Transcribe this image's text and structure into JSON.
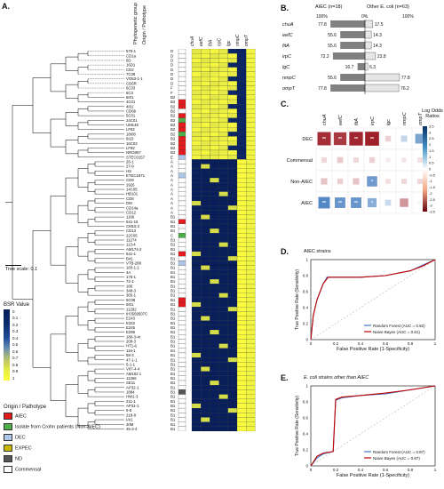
{
  "panelA": {
    "letter": "A.",
    "tree_scale_label": "Tree scale: 0.1",
    "header_phylo": "Phylogenetic group",
    "header_origin": "Origin / Pathotype",
    "genes": [
      "chuA",
      "eefC",
      "fitA",
      "irpC",
      "lgc",
      "nmpC",
      "ompT"
    ],
    "strains": [
      {
        "name": "576-1",
        "group": "D",
        "origin": "C"
      },
      {
        "name": "CD1a",
        "group": "D",
        "origin": "C"
      },
      {
        "name": "6D",
        "group": "D",
        "origin": "C"
      },
      {
        "name": "16D1",
        "group": "D",
        "origin": "C"
      },
      {
        "name": "CD2",
        "group": "D",
        "origin": "C"
      },
      {
        "name": "7C08",
        "group": "D",
        "origin": "C"
      },
      {
        "name": "VO53-1-1",
        "group": "D",
        "origin": "C"
      },
      {
        "name": "CD6R",
        "group": "D",
        "origin": "C"
      },
      {
        "name": "6C03",
        "group": "F",
        "origin": "C"
      },
      {
        "name": "6C3",
        "group": "F",
        "origin": "C"
      },
      {
        "name": "6I01",
        "group": "B2",
        "origin": "C"
      },
      {
        "name": "4C01",
        "group": "B2",
        "origin": "AIEC"
      },
      {
        "name": "4I01",
        "group": "B2",
        "origin": "AIEC"
      },
      {
        "name": "CD6b",
        "group": "B2",
        "origin": "C"
      },
      {
        "name": "5C01",
        "group": "B2",
        "origin": "AIEC"
      },
      {
        "name": "24C01",
        "group": "B2",
        "origin": "NonAIEC"
      },
      {
        "name": "UM146",
        "group": "B2",
        "origin": "AIEC"
      },
      {
        "name": "LF82",
        "group": "B2",
        "origin": "AIEC"
      },
      {
        "name": "18I08",
        "group": "B2",
        "origin": "NonAIEC"
      },
      {
        "name": "6I10",
        "group": "B2",
        "origin": "AIEC"
      },
      {
        "name": "16C02",
        "group": "B2",
        "origin": "AIEC"
      },
      {
        "name": "LF82",
        "group": "B2",
        "origin": "AIEC"
      },
      {
        "name": "NRG857",
        "group": "B2",
        "origin": "AIEC"
      },
      {
        "name": "STEC0157",
        "group": "E",
        "origin": "DEC"
      },
      {
        "name": "26-1",
        "group": "A",
        "origin": "C"
      },
      {
        "name": "27-9",
        "group": "A",
        "origin": "C"
      },
      {
        "name": "HS",
        "group": "A",
        "origin": "C"
      },
      {
        "name": "ETEC1871",
        "group": "A",
        "origin": "DEC"
      },
      {
        "name": "CD9",
        "group": "A",
        "origin": "C"
      },
      {
        "name": "1926",
        "group": "A",
        "origin": "C"
      },
      {
        "name": "14C05",
        "group": "A",
        "origin": "C"
      },
      {
        "name": "HB101",
        "group": "A",
        "origin": "C"
      },
      {
        "name": "CD8",
        "group": "A",
        "origin": "C"
      },
      {
        "name": "DM",
        "group": "A",
        "origin": "C"
      },
      {
        "name": "CD14a",
        "group": "A",
        "origin": "C"
      },
      {
        "name": "CD12",
        "group": "A",
        "origin": "C"
      },
      {
        "name": "1166",
        "group": "B1",
        "origin": "C"
      },
      {
        "name": "541-15",
        "group": "B1",
        "origin": "AIEC"
      },
      {
        "name": "CM15 2",
        "group": "B1",
        "origin": "C"
      },
      {
        "name": "CD13",
        "group": "B1",
        "origin": "C"
      },
      {
        "name": "22C05",
        "group": "C",
        "origin": "NonAIEC"
      },
      {
        "name": "11274",
        "group": "B1",
        "origin": "C"
      },
      {
        "name": "113-4",
        "group": "B1",
        "origin": "C"
      },
      {
        "name": "AM174-2",
        "group": "B1",
        "origin": "C"
      },
      {
        "name": "541-1",
        "group": "B1",
        "origin": "AIEC"
      },
      {
        "name": "B41",
        "group": "B1",
        "origin": "C"
      },
      {
        "name": "VTB-288",
        "group": "B1",
        "origin": "DEC"
      },
      {
        "name": "183-1-1",
        "group": "B1",
        "origin": "C"
      },
      {
        "name": "4A",
        "group": "B1",
        "origin": "C"
      },
      {
        "name": "175-1",
        "group": "B1",
        "origin": "C"
      },
      {
        "name": "72-1",
        "group": "B1",
        "origin": "C"
      },
      {
        "name": "186",
        "group": "B1",
        "origin": "C"
      },
      {
        "name": "348-3",
        "group": "B1",
        "origin": "C"
      },
      {
        "name": "365-1",
        "group": "B1",
        "origin": "C"
      },
      {
        "name": "5C08",
        "group": "B1",
        "origin": "AIEC"
      },
      {
        "name": "5I01",
        "group": "B1",
        "origin": "AIEC"
      },
      {
        "name": "11292",
        "group": "B1",
        "origin": "C"
      },
      {
        "name": "IH3569507C",
        "group": "B1",
        "origin": "C"
      },
      {
        "name": "E243",
        "group": "B1",
        "origin": "C"
      },
      {
        "name": "E342",
        "group": "B1",
        "origin": "C"
      },
      {
        "name": "E245",
        "group": "B1",
        "origin": "C"
      },
      {
        "name": "E296",
        "group": "B1",
        "origin": "C"
      },
      {
        "name": "180-3-4r",
        "group": "B1",
        "origin": "C"
      },
      {
        "name": "208-3",
        "group": "B1",
        "origin": "C"
      },
      {
        "name": "HT1-6",
        "group": "B1",
        "origin": "C"
      },
      {
        "name": "116-1",
        "group": "B1",
        "origin": "C"
      },
      {
        "name": "58-3",
        "group": "B1",
        "origin": "C"
      },
      {
        "name": "47-1-1",
        "group": "B1",
        "origin": "C"
      },
      {
        "name": "5-1-1",
        "group": "B1",
        "origin": "C"
      },
      {
        "name": "V07-4-4",
        "group": "B1",
        "origin": "C"
      },
      {
        "name": "AM162 1",
        "group": "B1",
        "origin": "C"
      },
      {
        "name": "11266",
        "group": "B1",
        "origin": "C"
      },
      {
        "name": "SE11",
        "group": "B1",
        "origin": "C"
      },
      {
        "name": "AP32-1",
        "group": "B1",
        "origin": "C"
      },
      {
        "name": "1884",
        "group": "B1",
        "origin": "ND"
      },
      {
        "name": "HW1-3",
        "group": "B1",
        "origin": "C"
      },
      {
        "name": "211-1",
        "group": "B1",
        "origin": "C"
      },
      {
        "name": "AP31-1",
        "group": "B1",
        "origin": "C"
      },
      {
        "name": "6-8",
        "group": "B1",
        "origin": "C"
      },
      {
        "name": "218-8",
        "group": "B1",
        "origin": "C"
      },
      {
        "name": "IAI1",
        "group": "B1",
        "origin": "C"
      },
      {
        "name": "30M",
        "group": "B1",
        "origin": "C"
      },
      {
        "name": "45-2-4",
        "group": "B1",
        "origin": "C"
      }
    ],
    "bsr_legend": {
      "title": "BSR Value",
      "ticks": [
        "0",
        "0.1",
        "0.2",
        "0.3",
        "0.4",
        "0.5",
        "0.6",
        "0.7",
        "0.8",
        "0.9",
        "1"
      ]
    },
    "origin_legend": {
      "title": "Origin / Pathotype",
      "items": [
        {
          "label": "AIEC",
          "color": "#e41a1c"
        },
        {
          "label": "Isolate from Crohn patients (Non-AIEC)",
          "color": "#4daf4a"
        },
        {
          "label": "DEC",
          "color": "#aec7e8"
        },
        {
          "label": "EXPEC",
          "color": "#c9b800"
        },
        {
          "label": "ND",
          "color": "#555555"
        },
        {
          "label": "Commensal",
          "color": "#ffffff"
        }
      ]
    }
  },
  "panelB": {
    "letter": "B.",
    "left_title": "AIEC (n=18)",
    "right_title": "Other E. coli (n=63)",
    "axis_labels": [
      "100%",
      "0%",
      "100%"
    ],
    "rows": [
      {
        "gene": "chuA",
        "aiec": 77.8,
        "other": 17.5
      },
      {
        "gene": "eefC",
        "aiec": 55.6,
        "other": 14.3
      },
      {
        "gene": "fitA",
        "aiec": 55.6,
        "other": 14.3
      },
      {
        "gene": "irpC",
        "aiec": 72.2,
        "other": 23.8
      },
      {
        "gene": "lgC",
        "aiec": 16.7,
        "other": 6.3
      },
      {
        "gene": "nmpC",
        "aiec": 55.6,
        "other": 77.8
      },
      {
        "gene": "ompT",
        "aiec": 77.8,
        "other": 76.2
      }
    ]
  },
  "panelC": {
    "letter": "C.",
    "genes": [
      "chuA",
      "eefC",
      "fitA",
      "irpC",
      "lgc",
      "nmpC",
      "ompT"
    ],
    "rows": [
      "DEC",
      "Commensal",
      "Non-AIEC",
      "AIEC"
    ],
    "legend_title": "Log Odds Ratios",
    "legend_ticks": [
      "3.5",
      "3",
      "2.5",
      "2",
      "1.5",
      "1",
      "0.5",
      "0",
      "-0.5",
      "-1",
      "-1.5",
      "-2",
      "-2.5",
      "-3",
      "-3.5"
    ],
    "values": [
      [
        -3.2,
        -3.0,
        -3.3,
        -3.4,
        -0.7,
        0.9,
        2.0
      ],
      [
        -0.6,
        -0.8,
        -0.6,
        -0.7,
        -0.3,
        -0.4,
        -0.5
      ],
      [
        -0.9,
        -0.7,
        -0.9,
        2.2,
        -0.5,
        -0.6,
        -0.6
      ],
      [
        2.6,
        2.3,
        2.3,
        1.8,
        0.8,
        -1.6,
        0.2
      ]
    ],
    "stars": [
      [
        "**",
        "**",
        "**",
        "**",
        "",
        "",
        ""
      ],
      [
        "",
        "",
        "",
        "",
        "",
        "",
        ""
      ],
      [
        "",
        "",
        "",
        "*",
        "",
        "",
        ""
      ],
      [
        "**",
        "**",
        "**",
        "*",
        "",
        "",
        ""
      ]
    ]
  },
  "panelD": {
    "letter": "D.",
    "title": "AIEC strains",
    "xlabel": "False Positive Rate (1-Specificity)",
    "ylabel": "True Positive Rate (Sensitivity)",
    "ticks": [
      "0",
      "0.2",
      "0.4",
      "0.6",
      "0.8",
      "1"
    ],
    "legend": [
      {
        "label": "Random Forest (AUC = 0.82)",
        "color": "#4472c4"
      },
      {
        "label": "Naive Bayes (AUC = 0.81)",
        "color": "#c00000"
      }
    ]
  },
  "panelE": {
    "letter": "E.",
    "title": "E. coli strains other than AIEC",
    "xlabel": "False Positive Rate (1-Specificity)",
    "ylabel": "True Positive Rate (Sensitivity)",
    "ticks": [
      "0",
      "0.2",
      "0.4",
      "0.6",
      "0.8",
      "1"
    ],
    "legend": [
      {
        "label": "Random Forest (AUC = 0.87)",
        "color": "#4472c4"
      },
      {
        "label": "Naive Bayes (AUC = 0.87)",
        "color": "#c00000"
      }
    ]
  },
  "chart_data": [
    {
      "type": "bar",
      "categories": [
        "chuA",
        "eefC",
        "fitA",
        "irpC",
        "lgC",
        "nmpC",
        "ompT"
      ],
      "series": [
        {
          "name": "AIEC (n=18)",
          "values": [
            77.8,
            55.6,
            55.6,
            72.2,
            16.7,
            55.6,
            77.8
          ]
        },
        {
          "name": "Other E. coli (n=63)",
          "values": [
            17.5,
            14.3,
            14.3,
            23.8,
            6.3,
            77.8,
            76.2
          ]
        }
      ]
    },
    {
      "type": "heatmap",
      "x": [
        "chuA",
        "eefC",
        "fitA",
        "irpC",
        "lgc",
        "nmpC",
        "ompT"
      ],
      "y": [
        "DEC",
        "Commensal",
        "Non-AIEC",
        "AIEC"
      ],
      "zlim": [
        -3.5,
        3.5
      ]
    },
    {
      "type": "line",
      "title": "AIEC strains",
      "xlabel": "False Positive Rate (1-Specificity)",
      "ylabel": "True Positive Rate (Sensitivity)",
      "xlim": [
        0,
        1
      ],
      "ylim": [
        0,
        1
      ],
      "series": [
        {
          "name": "Random Forest (AUC = 0.82)",
          "x": [
            0,
            0.02,
            0.05,
            0.1,
            0.12,
            0.13,
            0.4,
            0.6,
            0.8,
            0.9,
            1.0
          ],
          "y": [
            0,
            0.3,
            0.5,
            0.7,
            0.75,
            0.78,
            0.78,
            0.8,
            0.86,
            0.93,
            1.0
          ]
        },
        {
          "name": "Naive Bayes (AUC = 0.81)",
          "x": [
            0,
            0.02,
            0.05,
            0.1,
            0.12,
            0.14,
            0.4,
            0.6,
            0.8,
            0.9,
            1.0
          ],
          "y": [
            0,
            0.3,
            0.5,
            0.7,
            0.74,
            0.78,
            0.78,
            0.8,
            0.86,
            0.92,
            1.0
          ]
        }
      ]
    },
    {
      "type": "line",
      "title": "E. coli strains other than AIEC",
      "xlabel": "False Positive Rate (1-Specificity)",
      "ylabel": "True Positive Rate (Sensitivity)",
      "xlim": [
        0,
        1
      ],
      "ylim": [
        0,
        1
      ],
      "series": [
        {
          "name": "Random Forest (AUC = 0.87)",
          "x": [
            0,
            0.05,
            0.1,
            0.18,
            0.2,
            0.25,
            0.4,
            0.6,
            0.8,
            1.0
          ],
          "y": [
            0,
            0.1,
            0.15,
            0.18,
            0.82,
            0.85,
            0.88,
            0.9,
            0.95,
            1.0
          ]
        },
        {
          "name": "Naive Bayes (AUC = 0.87)",
          "x": [
            0,
            0.05,
            0.1,
            0.18,
            0.2,
            0.25,
            0.4,
            0.6,
            0.8,
            1.0
          ],
          "y": [
            0,
            0.12,
            0.16,
            0.18,
            0.83,
            0.86,
            0.88,
            0.91,
            0.95,
            1.0
          ]
        }
      ]
    }
  ]
}
